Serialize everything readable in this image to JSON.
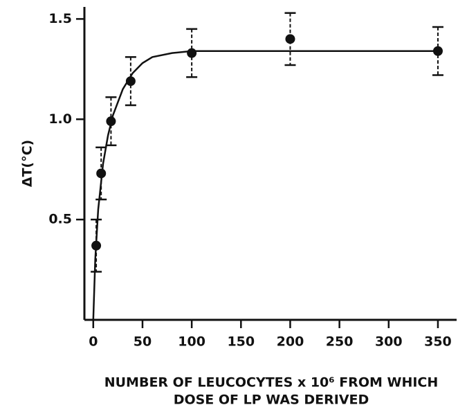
{
  "chart_data": {
    "type": "scatter",
    "ylabel": "ΔT(°C)",
    "xlabel": [
      "NUMBER OF LEUCOCYTES x 10⁶ FROM WHICH",
      "DOSE OF LP WAS DERIVED"
    ],
    "xlim": [
      -9,
      369
    ],
    "ylim": [
      0,
      1.56
    ],
    "xticks": [
      0,
      50,
      100,
      150,
      200,
      250,
      300,
      350
    ],
    "yticks": [
      0.5,
      {
        "value": 1,
        "label": "1.0"
      },
      1.5
    ],
    "color": "#111111",
    "series": [
      {
        "x": [
          3,
          8,
          18,
          38,
          100,
          200,
          350
        ],
        "values": [
          0.37,
          0.73,
          0.99,
          1.19,
          1.33,
          1.4,
          1.34
        ],
        "errors": [
          0.13,
          0.13,
          0.12,
          0.12,
          0.12,
          0.13,
          0.12
        ]
      }
    ],
    "curve": {
      "x": [
        0,
        2,
        5,
        10,
        15,
        20,
        30,
        40,
        50,
        60,
        80,
        100,
        150,
        200,
        350
      ],
      "y": [
        0,
        0.3,
        0.55,
        0.78,
        0.92,
        1.02,
        1.15,
        1.23,
        1.28,
        1.31,
        1.33,
        1.34,
        1.34,
        1.34,
        1.34
      ]
    }
  }
}
